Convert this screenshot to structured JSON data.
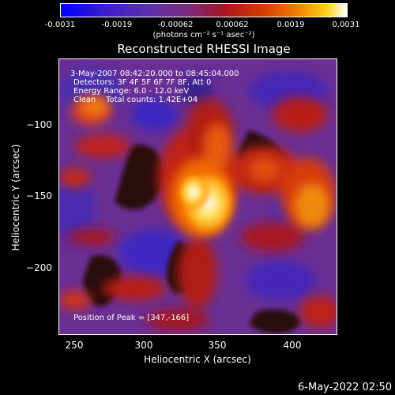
{
  "colorbar": {
    "ticks": [
      "-0.0031",
      "-0.0019",
      "-0.00062",
      "0.00062",
      "0.0019",
      "0.0031"
    ],
    "unit": "(photons cm⁻² s⁻¹ asec⁻²)"
  },
  "title": "Reconstructed RHESSI Image",
  "annotation": {
    "line1": "3-May-2007 08:42:20.000 to 08:45:04.000",
    "line2": "Detectors: 3F 4F 5F 6F 7F 8F, Att 0",
    "line3": "Energy Range: 6.0 - 12.0 keV",
    "line4": "Clean    Total counts: 1.42E+04",
    "peak": "Position of Peak = [347,-166]"
  },
  "x_axis": {
    "label": "Heliocentric X (arcsec)",
    "ticks": [
      "250",
      "300",
      "350",
      "400"
    ]
  },
  "y_axis": {
    "label": "Heliocentric Y (arcsec)",
    "ticks": [
      "−100",
      "−150",
      "−200"
    ]
  },
  "footer": {
    "timestamp": "6-May-2022 02:50"
  }
}
